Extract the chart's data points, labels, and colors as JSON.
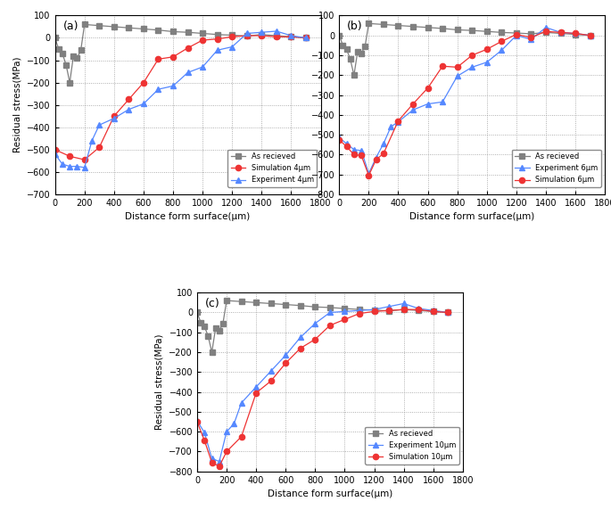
{
  "as_received_x": [
    0,
    25,
    50,
    75,
    100,
    125,
    150,
    175,
    200,
    300,
    400,
    500,
    600,
    700,
    800,
    900,
    1000,
    1100,
    1200,
    1300,
    1400,
    1500,
    1600,
    1700
  ],
  "as_received_y": [
    0,
    -50,
    -70,
    -120,
    -200,
    -80,
    -90,
    -55,
    60,
    55,
    50,
    45,
    40,
    35,
    28,
    25,
    20,
    15,
    12,
    8,
    15,
    10,
    5,
    0
  ],
  "sim4_x": [
    0,
    100,
    200,
    300,
    400,
    500,
    600,
    700,
    800,
    900,
    1000,
    1100,
    1200,
    1300,
    1400,
    1500,
    1600,
    1700
  ],
  "sim4_y": [
    -500,
    -530,
    -545,
    -490,
    -350,
    -275,
    -200,
    -95,
    -85,
    -45,
    -10,
    -5,
    5,
    10,
    10,
    5,
    5,
    0
  ],
  "exp4_x": [
    0,
    50,
    100,
    150,
    200,
    250,
    300,
    400,
    500,
    600,
    700,
    800,
    900,
    1000,
    1100,
    1200,
    1300,
    1400,
    1500,
    1600,
    1700
  ],
  "exp4_y": [
    -520,
    -565,
    -575,
    -575,
    -580,
    -460,
    -390,
    -360,
    -320,
    -295,
    -230,
    -215,
    -155,
    -130,
    -55,
    -40,
    20,
    25,
    30,
    10,
    0
  ],
  "sim6_x": [
    0,
    50,
    100,
    150,
    200,
    250,
    300,
    400,
    500,
    600,
    700,
    800,
    900,
    1000,
    1100,
    1200,
    1300,
    1400,
    1500,
    1600,
    1700
  ],
  "sim6_y": [
    -525,
    -560,
    -600,
    -605,
    -705,
    -625,
    -595,
    -430,
    -345,
    -265,
    -155,
    -160,
    -100,
    -70,
    -30,
    5,
    -10,
    20,
    15,
    10,
    0
  ],
  "exp6_x": [
    0,
    50,
    100,
    150,
    200,
    250,
    300,
    350,
    400,
    500,
    600,
    700,
    800,
    900,
    1000,
    1100,
    1200,
    1300,
    1400,
    1500,
    1600,
    1700
  ],
  "exp6_y": [
    -515,
    -545,
    -575,
    -580,
    -695,
    -615,
    -545,
    -460,
    -435,
    -375,
    -345,
    -335,
    -205,
    -160,
    -135,
    -75,
    0,
    -20,
    40,
    15,
    10,
    0
  ],
  "sim10_x": [
    0,
    50,
    100,
    150,
    200,
    300,
    400,
    500,
    600,
    700,
    800,
    900,
    1000,
    1100,
    1200,
    1300,
    1400,
    1500,
    1600,
    1700
  ],
  "sim10_y": [
    -550,
    -645,
    -755,
    -775,
    -700,
    -625,
    -405,
    -345,
    -255,
    -180,
    -135,
    -65,
    -35,
    -5,
    5,
    10,
    15,
    15,
    5,
    0
  ],
  "exp10_x": [
    0,
    50,
    100,
    150,
    200,
    250,
    300,
    400,
    500,
    600,
    700,
    800,
    900,
    1000,
    1100,
    1200,
    1300,
    1400,
    1500,
    1600,
    1700
  ],
  "exp10_y": [
    -545,
    -605,
    -735,
    -750,
    -600,
    -560,
    -455,
    -375,
    -295,
    -215,
    -125,
    -55,
    0,
    5,
    10,
    15,
    30,
    45,
    20,
    10,
    0
  ],
  "as_received_color": "#808080",
  "sim_color_4": "#EE3333",
  "exp_color_4": "#5588FF",
  "sim_color_6": "#EE3333",
  "exp_color_6": "#5588FF",
  "sim_color_10": "#EE3333",
  "exp_color_10": "#5588FF",
  "xlabel": "Distance form surface(μm)",
  "ylabel": "Residual stress(MPa)",
  "xlim": [
    0,
    1800
  ],
  "ylim_a": [
    -700,
    100
  ],
  "ylim_b": [
    -800,
    100
  ],
  "ylim_c": [
    -800,
    100
  ],
  "xticks": [
    0,
    200,
    400,
    600,
    800,
    1000,
    1200,
    1400,
    1600,
    1800
  ],
  "yticks_a": [
    -700,
    -600,
    -500,
    -400,
    -300,
    -200,
    -100,
    0,
    100
  ],
  "yticks_b": [
    -800,
    -700,
    -600,
    -500,
    -400,
    -300,
    -200,
    -100,
    0,
    100
  ],
  "yticks_c": [
    -800,
    -700,
    -600,
    -500,
    -400,
    -300,
    -200,
    -100,
    0,
    100
  ],
  "label_as_received": "As recieved",
  "label_sim4": "Simulation 4μm",
  "label_exp4": "Experiment 4μm",
  "label_sim6": "Simulation 6μm",
  "label_exp6": "Experiment 6μm",
  "label_sim10": "Simulation 10μm",
  "label_exp10": "Experiment 10μm"
}
